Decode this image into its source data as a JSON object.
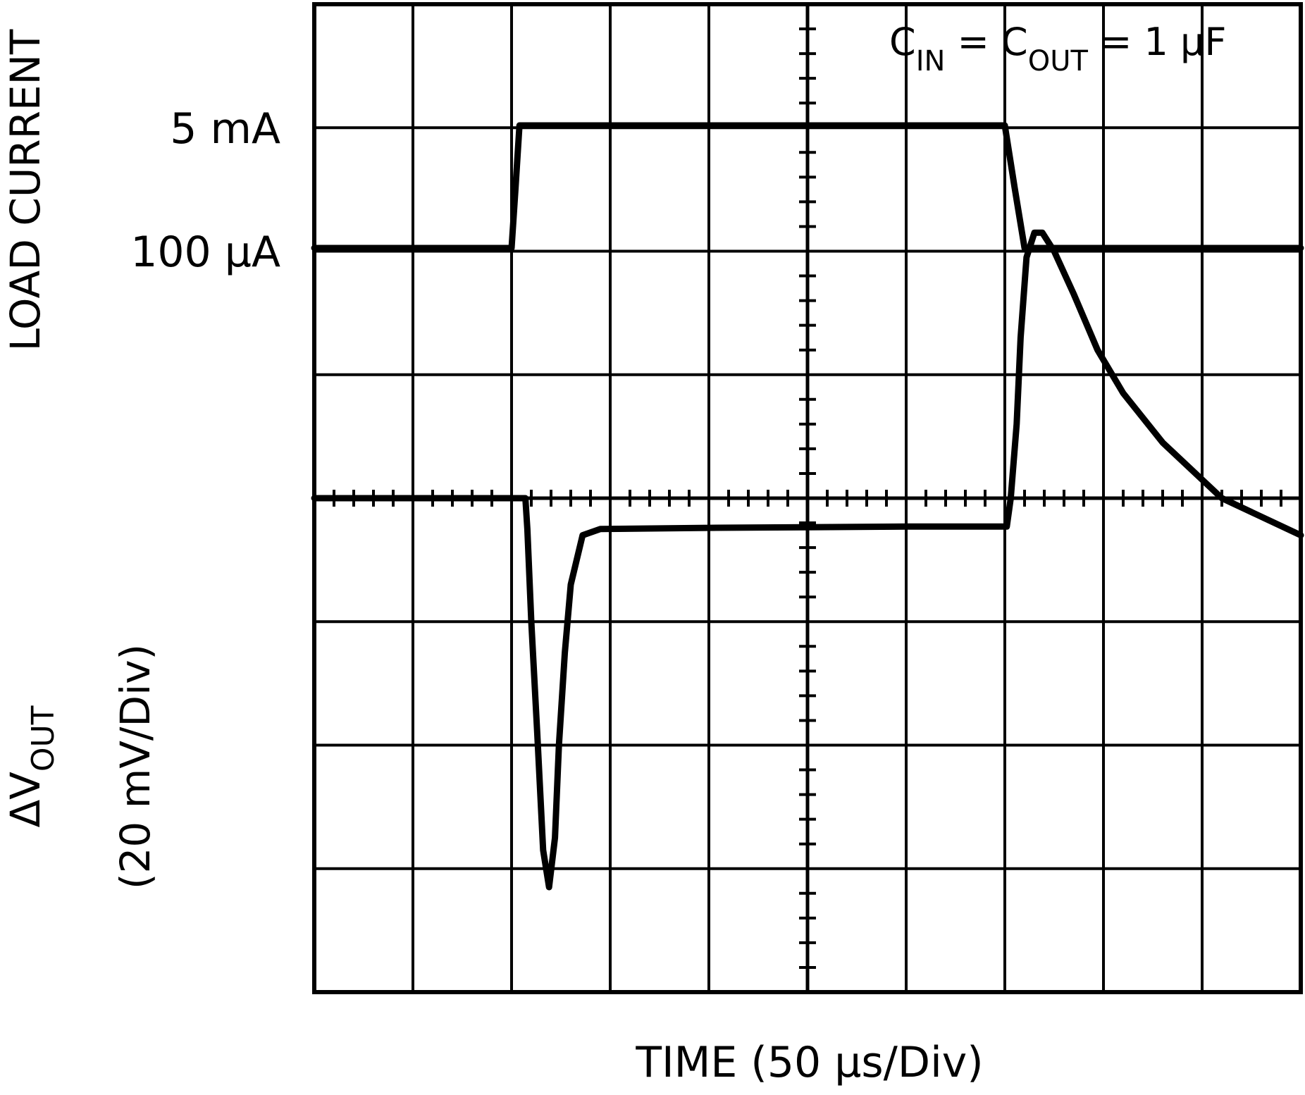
{
  "chart_data": {
    "type": "line",
    "annotation": {
      "c1": "C",
      "c1_sub": "IN",
      "eq1": " = C",
      "c2_sub": "OUT",
      "eq2": " = 1 μF"
    },
    "xlabel": "TIME (50 μs/Div)",
    "ylabel_top": "LOAD CURRENT",
    "ylabel_bottom": {
      "line1_prefix": "ΔV",
      "line1_sub": "OUT",
      "line2": "(20 mV/Div)"
    },
    "level_labels": {
      "high": "5 mA",
      "low": "100 μA"
    },
    "x_divisions": 10,
    "y_divisions": 8,
    "xlim": [
      0,
      500
    ],
    "grid": true,
    "series": [
      {
        "name": "LOAD CURRENT",
        "x": [
          0,
          100,
          102,
          104,
          350,
          355,
          360,
          500
        ],
        "y": [
          0.1,
          0.1,
          2.5,
          5,
          5,
          2.5,
          0.1,
          0.1
        ]
      },
      {
        "name": "ΔVOUT",
        "x": [
          0,
          107,
          108,
          110,
          113,
          116,
          119,
          122,
          124,
          127,
          130,
          136,
          145,
          200,
          300,
          351,
          353,
          356,
          358,
          361,
          365,
          369,
          375,
          385,
          397,
          410,
          430,
          460,
          500
        ],
        "y": [
          0,
          0,
          -5,
          -20,
          -38,
          -57,
          -63,
          -55,
          -40,
          -25,
          -14,
          -6,
          -5,
          -4.8,
          -4.6,
          -4.6,
          0,
          12,
          26,
          39,
          43,
          43,
          40,
          33,
          24,
          17,
          9,
          0,
          -6
        ]
      }
    ],
    "colors": {
      "trace": "#000000",
      "grid": "#000000",
      "background": "#ffffff"
    }
  }
}
